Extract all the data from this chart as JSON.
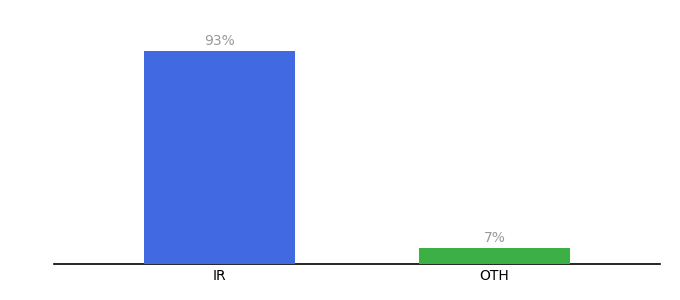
{
  "categories": [
    "IR",
    "OTH"
  ],
  "values": [
    93,
    7
  ],
  "bar_colors": [
    "#4169e1",
    "#3cb044"
  ],
  "value_labels": [
    "93%",
    "7%"
  ],
  "background_color": "#ffffff",
  "ylim": [
    0,
    105
  ],
  "bar_width": 0.55,
  "label_fontsize": 10,
  "tick_fontsize": 10,
  "spine_color": "#000000",
  "label_color": "#999999",
  "x_positions": [
    0,
    1
  ],
  "xlim": [
    -0.6,
    1.6
  ]
}
